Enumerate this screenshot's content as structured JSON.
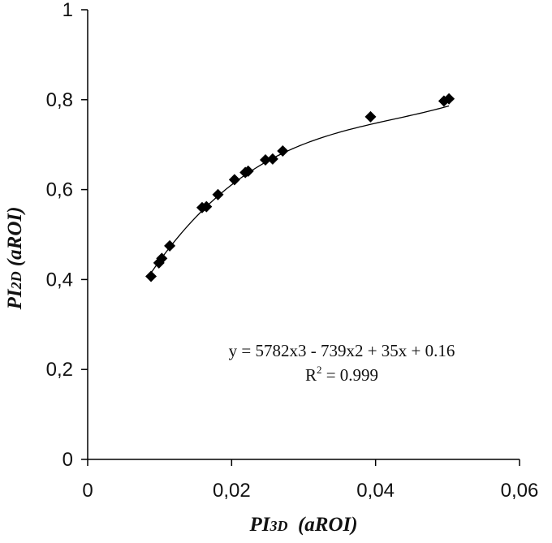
{
  "chart_data": {
    "type": "scatter",
    "xlabel": {
      "main": "PI",
      "sub": "3D",
      "tail": "  (aROI)"
    },
    "ylabel": {
      "main": "PI",
      "sub": "2D",
      "tail": " (aROI)"
    },
    "xlim": [
      0,
      0.06
    ],
    "ylim": [
      0,
      1
    ],
    "x_ticks": [
      0,
      0.02,
      0.04,
      0.06
    ],
    "x_tick_labels": [
      "0",
      "0,02",
      "0,04",
      "0,06"
    ],
    "y_ticks": [
      0,
      0.2,
      0.4,
      0.6,
      0.8,
      1
    ],
    "y_tick_labels": [
      "0",
      "0,2",
      "0,4",
      "0,6",
      "0,8",
      "1"
    ],
    "grid": false,
    "marker": "diamond",
    "color": "#000000",
    "points": [
      {
        "x": 0.0088,
        "y": 0.407
      },
      {
        "x": 0.0099,
        "y": 0.437
      },
      {
        "x": 0.0103,
        "y": 0.447
      },
      {
        "x": 0.0114,
        "y": 0.475
      },
      {
        "x": 0.0159,
        "y": 0.56
      },
      {
        "x": 0.0165,
        "y": 0.562
      },
      {
        "x": 0.0181,
        "y": 0.589
      },
      {
        "x": 0.0204,
        "y": 0.622
      },
      {
        "x": 0.0219,
        "y": 0.638
      },
      {
        "x": 0.0223,
        "y": 0.641
      },
      {
        "x": 0.0247,
        "y": 0.666
      },
      {
        "x": 0.0257,
        "y": 0.668
      },
      {
        "x": 0.0271,
        "y": 0.686
      },
      {
        "x": 0.0393,
        "y": 0.762
      },
      {
        "x": 0.0495,
        "y": 0.797
      },
      {
        "x": 0.0502,
        "y": 0.802
      }
    ],
    "trendline": {
      "type": "polynomial",
      "order": 3,
      "coefficients": [
        5782,
        -739,
        35,
        0.16
      ],
      "x_range": [
        0.0088,
        0.0502
      ]
    },
    "annotations": {
      "equation": "y = 5782x3 - 739x2 + 35x + 0.16",
      "r2_base": "R",
      "r2_exp": "2",
      "r2_value": " = 0.999"
    }
  }
}
